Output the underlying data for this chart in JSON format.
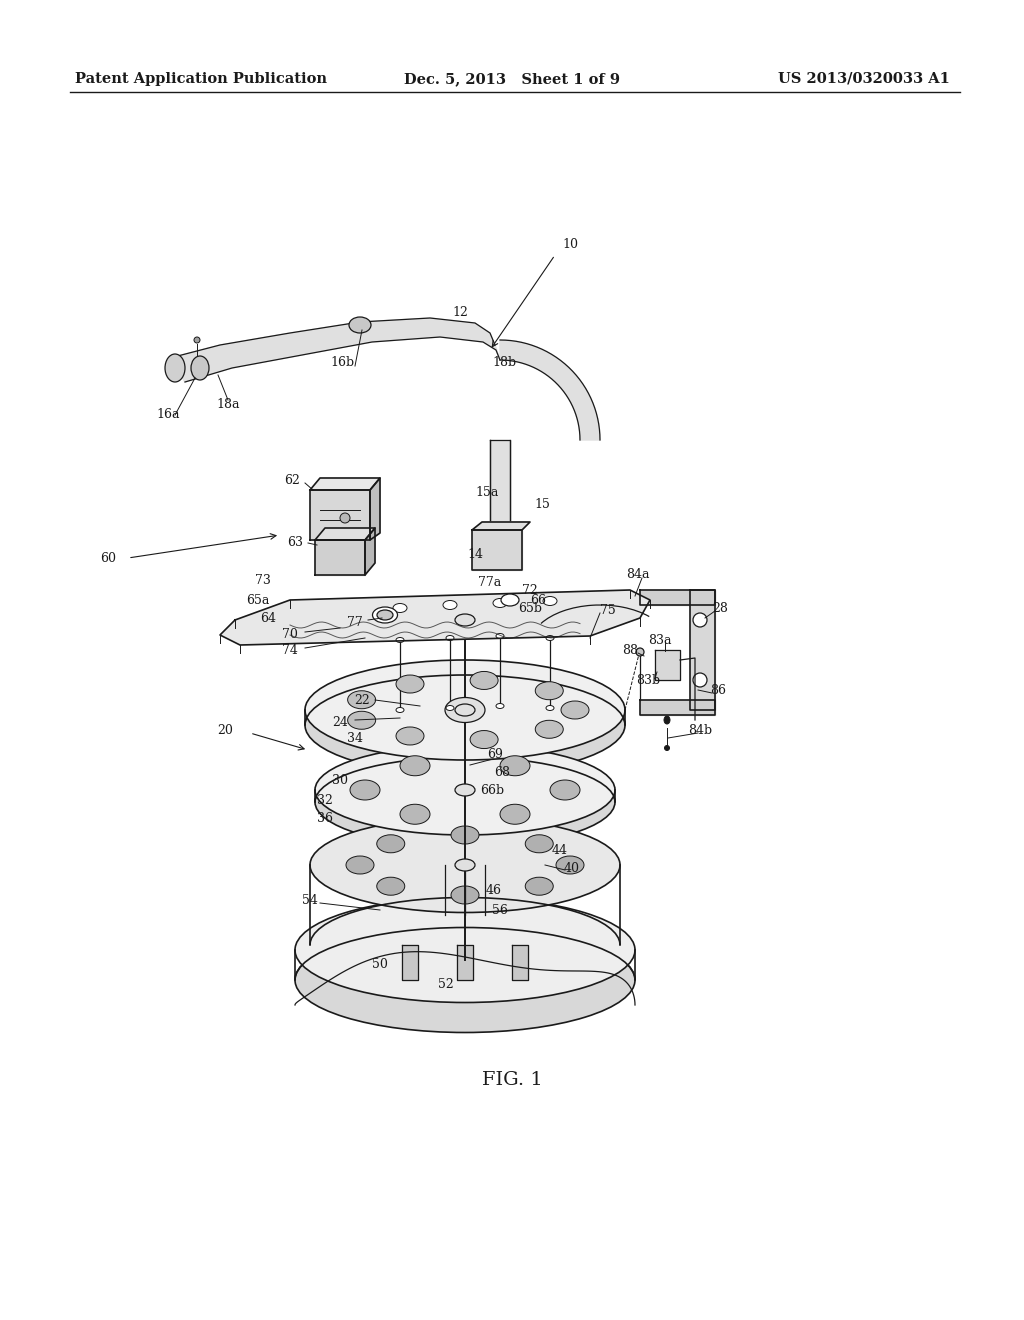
{
  "background_color": "#ffffff",
  "header_left": "Patent Application Publication",
  "header_center": "Dec. 5, 2013   Sheet 1 of 9",
  "header_right": "US 2013/0320033 A1",
  "figure_label": "FIG. 1",
  "header_fontsize": 10.5,
  "label_fontsize": 9,
  "fig_label_fontsize": 14,
  "line_color": "#1a1a1a",
  "gray_light": "#e8e8e8",
  "gray_mid": "#c8c8c8",
  "gray_dark": "#a0a0a0"
}
